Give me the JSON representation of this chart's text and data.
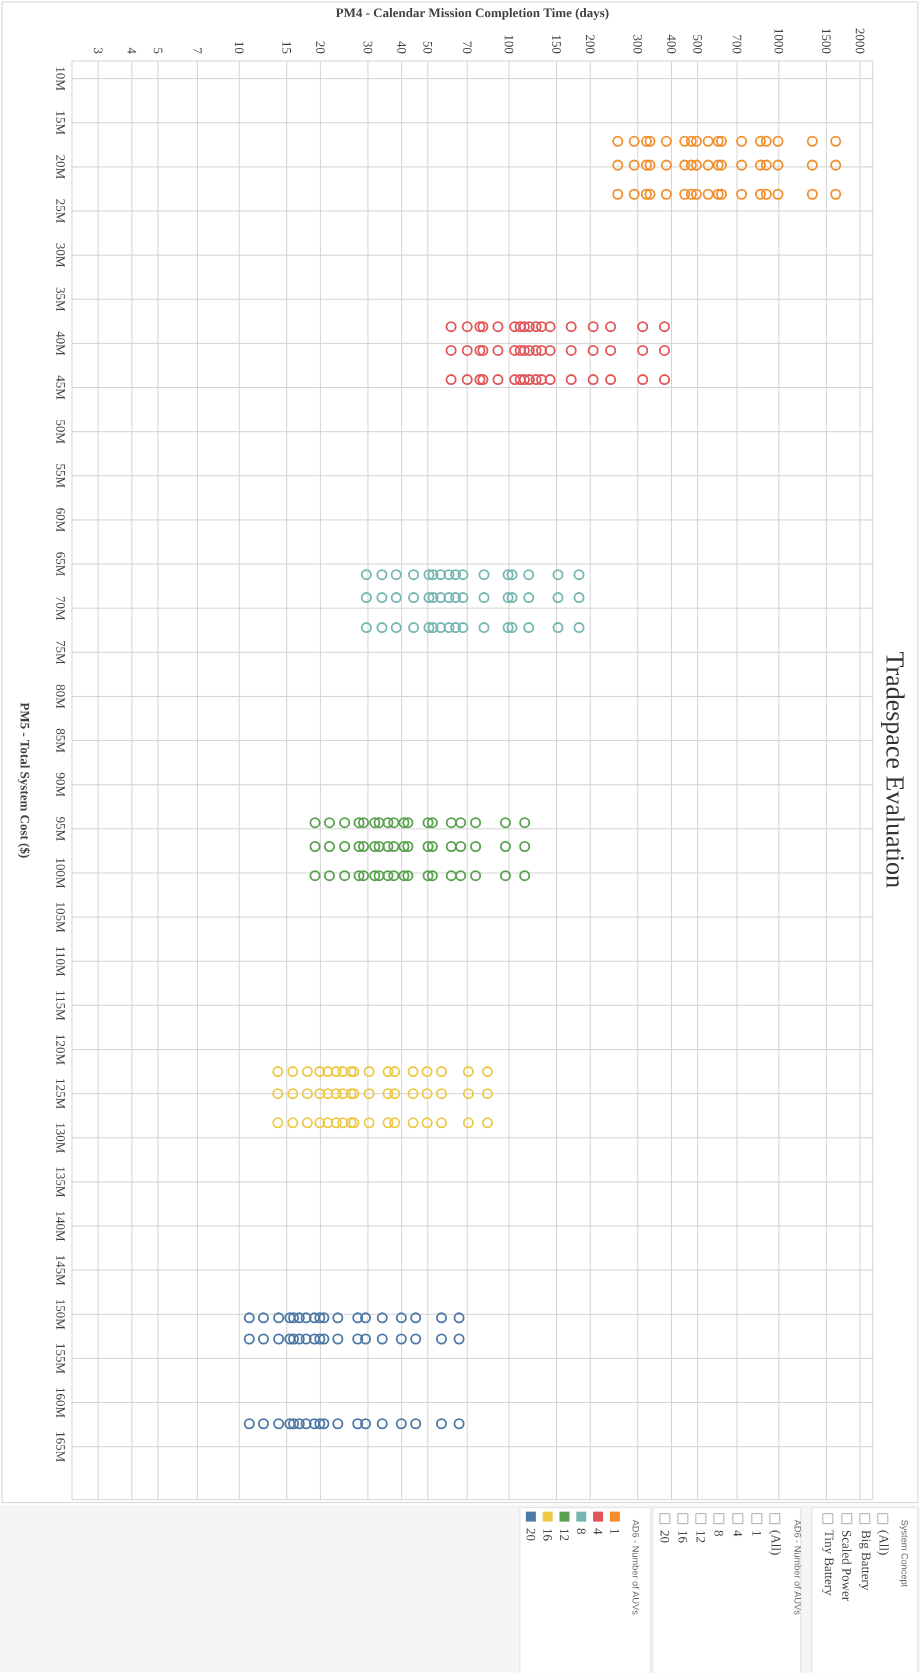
{
  "chart_data": {
    "type": "scatter",
    "title": "Tradespace Evaluation",
    "xlabel": "PM4 - Calendar Mission Completion Time (days)",
    "ylabel": "PM5 - Total System Cost ($)",
    "legend_title": "AD6 - Number of AUVs",
    "legend": "bottom",
    "log": "x",
    "grid": true,
    "marker": "circle",
    "xlim": [
      2.4,
      2230
    ],
    "ylim": [
      171000000,
      8000000
    ],
    "xticks": [
      3,
      4,
      5,
      7,
      10,
      15,
      20,
      30,
      40,
      50,
      70,
      100,
      150,
      200,
      300,
      400,
      500,
      700,
      1000,
      1500,
      2000
    ],
    "yticks": [
      {
        "value": 10000000,
        "label": "10M"
      },
      {
        "value": 15000000,
        "label": "15M"
      },
      {
        "value": 20000000,
        "label": "20M"
      },
      {
        "value": 25000000,
        "label": "25M"
      },
      {
        "value": 30000000,
        "label": "30M"
      },
      {
        "value": 35000000,
        "label": "35M"
      },
      {
        "value": 40000000,
        "label": "40M"
      },
      {
        "value": 45000000,
        "label": "45M"
      },
      {
        "value": 50000000,
        "label": "50M"
      },
      {
        "value": 55000000,
        "label": "55M"
      },
      {
        "value": 60000000,
        "label": "60M"
      },
      {
        "value": 65000000,
        "label": "65M"
      },
      {
        "value": 70000000,
        "label": "70M"
      },
      {
        "value": 75000000,
        "label": "75M"
      },
      {
        "value": 80000000,
        "label": "80M"
      },
      {
        "value": 85000000,
        "label": "85M"
      },
      {
        "value": 90000000,
        "label": "90M"
      },
      {
        "value": 95000000,
        "label": "95M"
      },
      {
        "value": 100000000,
        "label": "100M"
      },
      {
        "value": 105000000,
        "label": "105M"
      },
      {
        "value": 110000000,
        "label": "110M"
      },
      {
        "value": 115000000,
        "label": "115M"
      },
      {
        "value": 120000000,
        "label": "120M"
      },
      {
        "value": 125000000,
        "label": "125M"
      },
      {
        "value": 130000000,
        "label": "130M"
      },
      {
        "value": 135000000,
        "label": "135M"
      },
      {
        "value": 140000000,
        "label": "140M"
      },
      {
        "value": 145000000,
        "label": "145M"
      },
      {
        "value": 150000000,
        "label": "150M"
      },
      {
        "value": 155000000,
        "label": "155M"
      },
      {
        "value": 160000000,
        "label": "160M"
      },
      {
        "value": 165000000,
        "label": "165M"
      }
    ],
    "series": [
      {
        "name": "1",
        "color": "#f28e2b",
        "x": [
          253,
          291,
          323,
          333,
          383,
          448,
          474,
          495,
          547,
          596,
          613,
          728,
          855,
          899,
          993,
          1331,
          1625,
          253,
          291,
          323,
          333,
          383,
          448,
          474,
          495,
          547,
          596,
          613,
          728,
          855,
          899,
          993,
          1331,
          1625,
          253,
          291,
          323,
          333,
          383,
          448,
          474,
          495,
          547,
          596,
          613,
          728,
          855,
          899,
          993,
          1331,
          1625
        ],
        "values": [
          17100000,
          17100000,
          17100000,
          17100000,
          17100000,
          17100000,
          17100000,
          17100000,
          17100000,
          17100000,
          17100000,
          17100000,
          17100000,
          17100000,
          17100000,
          17100000,
          17100000,
          19800000,
          19800000,
          19800000,
          19800000,
          19800000,
          19800000,
          19800000,
          19800000,
          19800000,
          19800000,
          19800000,
          19800000,
          19800000,
          19800000,
          19800000,
          19800000,
          19800000,
          23100000,
          23100000,
          23100000,
          23100000,
          23100000,
          23100000,
          23100000,
          23100000,
          23100000,
          23100000,
          23100000,
          23100000,
          23100000,
          23100000,
          23100000,
          23100000,
          23100000
        ]
      },
      {
        "name": "4",
        "color": "#e15759",
        "x": [
          61,
          70,
          78,
          80,
          91,
          105,
          110,
          114,
          119,
          126,
          132,
          142,
          170,
          205,
          238,
          313,
          377,
          61,
          70,
          78,
          80,
          91,
          105,
          110,
          114,
          119,
          126,
          132,
          142,
          170,
          205,
          238,
          313,
          377,
          61,
          70,
          78,
          80,
          91,
          105,
          110,
          114,
          119,
          126,
          132,
          142,
          170,
          205,
          238,
          313,
          377
        ],
        "values": [
          38100000,
          38100000,
          38100000,
          38100000,
          38100000,
          38100000,
          38100000,
          38100000,
          38100000,
          38100000,
          38100000,
          38100000,
          38100000,
          38100000,
          38100000,
          38100000,
          38100000,
          40800000,
          40800000,
          40800000,
          40800000,
          40800000,
          40800000,
          40800000,
          40800000,
          40800000,
          40800000,
          40800000,
          40800000,
          40800000,
          40800000,
          40800000,
          40800000,
          40800000,
          44100000,
          44100000,
          44100000,
          44100000,
          44100000,
          44100000,
          44100000,
          44100000,
          44100000,
          44100000,
          44100000,
          44100000,
          44100000,
          44100000,
          44100000,
          44100000,
          44100000
        ]
      },
      {
        "name": "8",
        "color": "#76b7b2",
        "x": [
          29.6,
          33.8,
          38.2,
          44.3,
          50.5,
          52.3,
          55.8,
          59.9,
          63.4,
          67.5,
          80.8,
          99.2,
          102.6,
          118.3,
          151.9,
          181.8,
          29.6,
          33.8,
          38.2,
          44.3,
          50.5,
          52.3,
          55.8,
          59.9,
          63.4,
          67.5,
          80.8,
          99.2,
          102.6,
          118.3,
          151.9,
          181.8,
          29.6,
          33.8,
          38.2,
          44.3,
          50.5,
          52.3,
          55.8,
          59.9,
          63.4,
          67.5,
          80.8,
          99.2,
          102.6,
          118.3,
          151.9,
          181.8
        ],
        "values": [
          66200000,
          66200000,
          66200000,
          66200000,
          66200000,
          66200000,
          66200000,
          66200000,
          66200000,
          66200000,
          66200000,
          66200000,
          66200000,
          66200000,
          66200000,
          66200000,
          68800000,
          68800000,
          68800000,
          68800000,
          68800000,
          68800000,
          68800000,
          68800000,
          68800000,
          68800000,
          68800000,
          68800000,
          68800000,
          68800000,
          68800000,
          68800000,
          72200000,
          72200000,
          72200000,
          72200000,
          72200000,
          72200000,
          72200000,
          72200000,
          72200000,
          72200000,
          72200000,
          72200000,
          72200000,
          72200000,
          72200000,
          72200000
        ]
      },
      {
        "name": "12",
        "color": "#59a14f",
        "x": [
          19.1,
          21.6,
          24.6,
          27.8,
          28.9,
          31.8,
          33.0,
          35.6,
          37.4,
          40.8,
          42.2,
          50.1,
          52.0,
          61.1,
          66.2,
          75.2,
          97.0,
          114.3,
          19.1,
          21.6,
          24.6,
          27.8,
          28.9,
          31.8,
          33.0,
          35.6,
          37.4,
          40.8,
          42.2,
          50.1,
          52.0,
          61.1,
          66.2,
          75.2,
          97.0,
          114.3,
          19.1,
          21.6,
          24.6,
          27.8,
          28.9,
          31.8,
          33.0,
          35.6,
          37.4,
          40.8,
          42.2,
          50.1,
          52.0,
          61.1,
          66.2,
          75.2,
          97.0,
          114.3
        ],
        "values": [
          94300000,
          94300000,
          94300000,
          94300000,
          94300000,
          94300000,
          94300000,
          94300000,
          94300000,
          94300000,
          94300000,
          94300000,
          94300000,
          94300000,
          94300000,
          94300000,
          94300000,
          94300000,
          97000000,
          97000000,
          97000000,
          97000000,
          97000000,
          97000000,
          97000000,
          97000000,
          97000000,
          97000000,
          97000000,
          97000000,
          97000000,
          97000000,
          97000000,
          97000000,
          97000000,
          97000000,
          100300000,
          100300000,
          100300000,
          100300000,
          100300000,
          100300000,
          100300000,
          100300000,
          100300000,
          100300000,
          100300000,
          100300000,
          100300000,
          100300000,
          100300000,
          100300000,
          100300000,
          100300000
        ]
      },
      {
        "name": "16",
        "color": "#edc948",
        "x": [
          13.9,
          15.8,
          17.9,
          19.9,
          21.3,
          22.9,
          24.2,
          26.0,
          26.6,
          30.3,
          35.6,
          37.7,
          44.1,
          49.7,
          56.2,
          70.7,
          83.2,
          13.9,
          15.8,
          17.9,
          19.9,
          21.3,
          22.9,
          24.2,
          26.0,
          26.6,
          30.3,
          35.6,
          37.7,
          44.1,
          49.7,
          56.2,
          70.7,
          83.2,
          13.9,
          15.8,
          17.9,
          19.9,
          21.3,
          22.9,
          24.2,
          26.0,
          26.6,
          30.3,
          35.6,
          37.7,
          44.1,
          49.7,
          56.2,
          70.7,
          83.2
        ],
        "values": [
          122500000,
          122500000,
          122500000,
          122500000,
          122500000,
          122500000,
          122500000,
          122500000,
          122500000,
          122500000,
          122500000,
          122500000,
          122500000,
          122500000,
          122500000,
          122500000,
          122500000,
          125000000,
          125000000,
          125000000,
          125000000,
          125000000,
          125000000,
          125000000,
          125000000,
          125000000,
          125000000,
          125000000,
          125000000,
          125000000,
          125000000,
          125000000,
          125000000,
          125000000,
          128300000,
          128300000,
          128300000,
          128300000,
          128300000,
          128300000,
          128300000,
          128300000,
          128300000,
          128300000,
          128300000,
          128300000,
          128300000,
          128300000,
          128300000,
          128300000,
          128300000
        ]
      },
      {
        "name": "20",
        "color": "#4e79a7",
        "x": [
          10.9,
          12.3,
          14.0,
          15.4,
          15.9,
          16.7,
          17.7,
          19.0,
          19.9,
          20.6,
          23.2,
          27.5,
          29.4,
          33.9,
          39.9,
          45.1,
          56.2,
          65.3,
          10.9,
          12.3,
          14.0,
          15.4,
          15.9,
          16.7,
          17.7,
          19.0,
          19.9,
          20.6,
          23.2,
          27.5,
          29.4,
          33.9,
          39.9,
          45.1,
          56.2,
          65.3,
          10.9,
          12.3,
          14.0,
          15.4,
          15.9,
          16.7,
          17.7,
          19.0,
          19.9,
          20.6,
          23.2,
          27.5,
          29.4,
          33.9,
          39.9,
          45.1,
          56.2,
          65.3
        ],
        "values": [
          150400000,
          150400000,
          150400000,
          150400000,
          150400000,
          150400000,
          150400000,
          150400000,
          150400000,
          150400000,
          150400000,
          150400000,
          150400000,
          150400000,
          150400000,
          150400000,
          150400000,
          150400000,
          152800000,
          152800000,
          152800000,
          152800000,
          152800000,
          152800000,
          152800000,
          152800000,
          152800000,
          152800000,
          152800000,
          152800000,
          152800000,
          152800000,
          152800000,
          152800000,
          152800000,
          152800000,
          162400000,
          162400000,
          162400000,
          162400000,
          162400000,
          162400000,
          162400000,
          162400000,
          162400000,
          162400000,
          162400000,
          162400000,
          162400000,
          162400000,
          162400000,
          162400000,
          162400000,
          162400000
        ]
      }
    ],
    "annotations": [
      "AD6 - Number of AUVs",
      "(All)",
      "1",
      "4",
      "8",
      "12",
      "16",
      "20",
      "System Concept",
      "(All)",
      "Big Battery",
      "Scaled Power",
      "Tiny Battery"
    ]
  }
}
